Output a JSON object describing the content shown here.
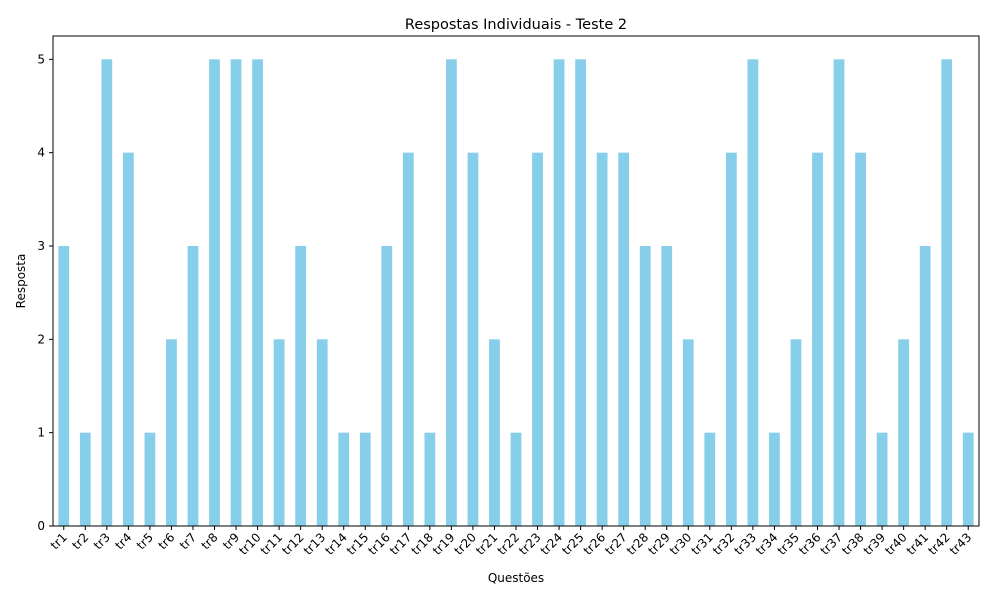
{
  "chart_data": {
    "type": "bar",
    "title": "Respostas Individuais - Teste 2",
    "xlabel": "Questões",
    "ylabel": "Resposta",
    "categories": [
      "tr1",
      "tr2",
      "tr3",
      "tr4",
      "tr5",
      "tr6",
      "tr7",
      "tr8",
      "tr9",
      "tr10",
      "tr11",
      "tr12",
      "tr13",
      "tr14",
      "tr15",
      "tr16",
      "tr17",
      "tr18",
      "tr19",
      "tr20",
      "tr21",
      "tr22",
      "tr23",
      "tr24",
      "tr25",
      "tr26",
      "tr27",
      "tr28",
      "tr29",
      "tr30",
      "tr31",
      "tr32",
      "tr33",
      "tr34",
      "tr35",
      "tr36",
      "tr37",
      "tr38",
      "tr39",
      "tr40",
      "tr41",
      "tr42",
      "tr43"
    ],
    "values": [
      3,
      1,
      5,
      4,
      1,
      2,
      3,
      5,
      5,
      5,
      2,
      3,
      2,
      1,
      1,
      3,
      4,
      1,
      5,
      4,
      2,
      1,
      4,
      5,
      5,
      4,
      4,
      3,
      3,
      2,
      1,
      4,
      5,
      1,
      2,
      4,
      5,
      4,
      1,
      2,
      3,
      5,
      1
    ],
    "ylim": [
      0,
      5.25
    ],
    "yticks": [
      "0",
      "1",
      "2",
      "3",
      "4",
      "5"
    ],
    "bar_color": "#87ceeb",
    "grid": false,
    "legend": "none"
  }
}
